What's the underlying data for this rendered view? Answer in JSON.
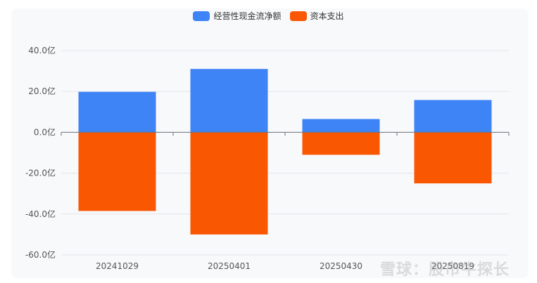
{
  "chart_data": {
    "type": "bar",
    "categories": [
      "20241029",
      "20250401",
      "20250430",
      "20250819"
    ],
    "series": [
      {
        "name": "经营性现金流净额",
        "color": "#3e84f6",
        "values": [
          19.8,
          31.0,
          6.5,
          15.8
        ]
      },
      {
        "name": "资本支出",
        "color": "#fa5702",
        "values": [
          -38.5,
          -50.0,
          -11.0,
          -25.0
        ]
      }
    ],
    "ylim": [
      -60,
      40
    ],
    "yticks": [
      {
        "value": 40,
        "label": "40.0亿"
      },
      {
        "value": 20,
        "label": "20.0亿"
      },
      {
        "value": 0,
        "label": "0.0亿"
      },
      {
        "value": -20,
        "label": "-20.0亿"
      },
      {
        "value": -40,
        "label": "-40.0亿"
      },
      {
        "value": -60,
        "label": "-60.0亿"
      }
    ],
    "grid": true,
    "legend_position": "top-center",
    "stacked": true
  },
  "watermark": "雪球：股市牛探长"
}
